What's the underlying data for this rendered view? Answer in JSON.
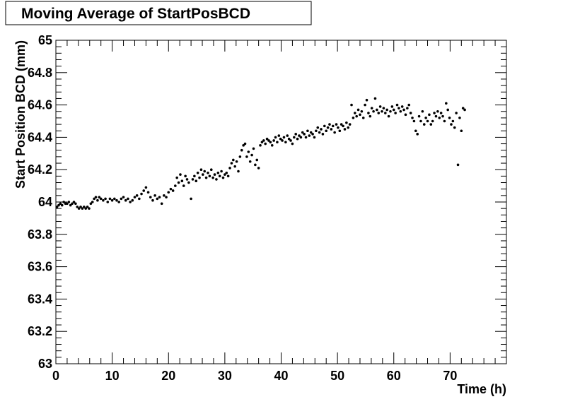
{
  "chart_data": {
    "type": "scatter",
    "title": "Moving Average of StartPosBCD",
    "xlabel": "Time (h)",
    "ylabel": "Start Position BCD (mm)",
    "xlim": [
      0,
      80
    ],
    "ylim": [
      63,
      65
    ],
    "x_ticks": [
      "0",
      "10",
      "20",
      "30",
      "40",
      "50",
      "60",
      "70"
    ],
    "y_ticks": [
      "63",
      "63.2",
      "63.4",
      "63.6",
      "63.8",
      "64",
      "64.2",
      "64.4",
      "64.6",
      "64.8",
      "65"
    ],
    "grid": false,
    "marker_color": "#000000",
    "series": [
      {
        "points": [
          [
            0.2,
            63.97
          ],
          [
            0.5,
            63.98
          ],
          [
            0.8,
            63.99
          ],
          [
            1.1,
            63.98
          ],
          [
            1.4,
            64.0
          ],
          [
            1.7,
            63.99
          ],
          [
            2.0,
            63.99
          ],
          [
            2.3,
            64.0
          ],
          [
            2.6,
            63.98
          ],
          [
            2.9,
            63.99
          ],
          [
            3.2,
            64.0
          ],
          [
            3.5,
            63.99
          ],
          [
            3.8,
            63.97
          ],
          [
            4.1,
            63.96
          ],
          [
            4.4,
            63.97
          ],
          [
            4.7,
            63.96
          ],
          [
            5.0,
            63.97
          ],
          [
            5.3,
            63.96
          ],
          [
            5.6,
            63.97
          ],
          [
            5.9,
            63.96
          ],
          [
            6.2,
            63.99
          ],
          [
            6.5,
            64.0
          ],
          [
            6.8,
            64.02
          ],
          [
            7.1,
            64.03
          ],
          [
            7.4,
            64.01
          ],
          [
            7.7,
            64.03
          ],
          [
            8.0,
            64.02
          ],
          [
            8.4,
            64.01
          ],
          [
            8.8,
            64.02
          ],
          [
            9.2,
            64.0
          ],
          [
            9.6,
            64.02
          ],
          [
            10.0,
            64.01
          ],
          [
            10.4,
            64.02
          ],
          [
            10.8,
            64.01
          ],
          [
            11.2,
            64.0
          ],
          [
            11.6,
            64.02
          ],
          [
            12.0,
            64.03
          ],
          [
            12.4,
            64.01
          ],
          [
            12.8,
            64.02
          ],
          [
            13.2,
            64.0
          ],
          [
            13.6,
            64.01
          ],
          [
            14.0,
            64.03
          ],
          [
            14.4,
            64.04
          ],
          [
            14.8,
            64.02
          ],
          [
            15.2,
            64.05
          ],
          [
            15.6,
            64.07
          ],
          [
            16.0,
            64.09
          ],
          [
            16.4,
            64.06
          ],
          [
            16.8,
            64.03
          ],
          [
            17.2,
            64.01
          ],
          [
            17.6,
            64.04
          ],
          [
            18.0,
            64.02
          ],
          [
            18.4,
            64.03
          ],
          [
            18.8,
            63.99
          ],
          [
            19.2,
            64.04
          ],
          [
            19.6,
            64.03
          ],
          [
            20.0,
            64.06
          ],
          [
            20.4,
            64.08
          ],
          [
            20.8,
            64.07
          ],
          [
            21.2,
            64.1
          ],
          [
            21.5,
            64.15
          ],
          [
            21.8,
            64.12
          ],
          [
            22.1,
            64.17
          ],
          [
            22.4,
            64.13
          ],
          [
            22.7,
            64.1
          ],
          [
            23.0,
            64.16
          ],
          [
            23.3,
            64.14
          ],
          [
            23.6,
            64.12
          ],
          [
            24.0,
            64.02
          ],
          [
            24.3,
            64.14
          ],
          [
            24.6,
            64.16
          ],
          [
            24.9,
            64.13
          ],
          [
            25.2,
            64.18
          ],
          [
            25.5,
            64.15
          ],
          [
            25.8,
            64.2
          ],
          [
            26.1,
            64.17
          ],
          [
            26.4,
            64.19
          ],
          [
            26.7,
            64.15
          ],
          [
            27.0,
            64.18
          ],
          [
            27.3,
            64.16
          ],
          [
            27.6,
            64.2
          ],
          [
            27.9,
            64.15
          ],
          [
            28.2,
            64.17
          ],
          [
            28.5,
            64.14
          ],
          [
            28.8,
            64.18
          ],
          [
            29.1,
            64.16
          ],
          [
            29.4,
            64.19
          ],
          [
            29.7,
            64.15
          ],
          [
            30.0,
            64.17
          ],
          [
            30.3,
            64.18
          ],
          [
            30.6,
            64.16
          ],
          [
            30.9,
            64.21
          ],
          [
            31.2,
            64.24
          ],
          [
            31.5,
            64.26
          ],
          [
            31.8,
            64.22
          ],
          [
            32.1,
            64.25
          ],
          [
            32.4,
            64.19
          ],
          [
            32.7,
            64.28
          ],
          [
            33.0,
            64.32
          ],
          [
            33.3,
            64.35
          ],
          [
            33.6,
            64.36
          ],
          [
            33.9,
            64.28
          ],
          [
            34.2,
            64.31
          ],
          [
            34.5,
            64.25
          ],
          [
            34.8,
            64.29
          ],
          [
            35.1,
            64.33
          ],
          [
            35.4,
            64.23
          ],
          [
            35.7,
            64.26
          ],
          [
            36.0,
            64.21
          ],
          [
            36.3,
            64.35
          ],
          [
            36.6,
            64.37
          ],
          [
            36.9,
            64.38
          ],
          [
            37.2,
            64.36
          ],
          [
            37.5,
            64.39
          ],
          [
            37.8,
            64.38
          ],
          [
            38.1,
            64.37
          ],
          [
            38.4,
            64.35
          ],
          [
            38.7,
            64.38
          ],
          [
            39.0,
            64.4
          ],
          [
            39.3,
            64.37
          ],
          [
            39.6,
            64.41
          ],
          [
            39.9,
            64.39
          ],
          [
            40.2,
            64.38
          ],
          [
            40.5,
            64.4
          ],
          [
            40.8,
            64.37
          ],
          [
            41.1,
            64.41
          ],
          [
            41.4,
            64.39
          ],
          [
            41.7,
            64.38
          ],
          [
            42.0,
            64.36
          ],
          [
            42.3,
            64.4
          ],
          [
            42.6,
            64.42
          ],
          [
            42.9,
            64.39
          ],
          [
            43.2,
            64.41
          ],
          [
            43.5,
            64.4
          ],
          [
            43.8,
            64.43
          ],
          [
            44.1,
            64.42
          ],
          [
            44.4,
            64.4
          ],
          [
            44.7,
            64.44
          ],
          [
            45.0,
            64.41
          ],
          [
            45.3,
            64.43
          ],
          [
            45.6,
            64.42
          ],
          [
            45.9,
            64.4
          ],
          [
            46.2,
            64.44
          ],
          [
            46.5,
            64.46
          ],
          [
            46.8,
            64.43
          ],
          [
            47.1,
            64.45
          ],
          [
            47.4,
            64.42
          ],
          [
            47.7,
            64.47
          ],
          [
            48.0,
            64.44
          ],
          [
            48.3,
            64.46
          ],
          [
            48.6,
            64.48
          ],
          [
            48.9,
            64.45
          ],
          [
            49.2,
            64.47
          ],
          [
            49.5,
            64.43
          ],
          [
            49.8,
            64.48
          ],
          [
            50.1,
            64.46
          ],
          [
            50.4,
            64.44
          ],
          [
            50.7,
            64.48
          ],
          [
            51.0,
            64.47
          ],
          [
            51.3,
            64.45
          ],
          [
            51.6,
            64.49
          ],
          [
            51.9,
            64.46
          ],
          [
            52.2,
            64.48
          ],
          [
            52.5,
            64.6
          ],
          [
            52.8,
            64.52
          ],
          [
            53.1,
            64.55
          ],
          [
            53.4,
            64.53
          ],
          [
            53.7,
            64.57
          ],
          [
            54.0,
            64.54
          ],
          [
            54.3,
            64.56
          ],
          [
            54.6,
            64.52
          ],
          [
            54.9,
            64.6
          ],
          [
            55.2,
            64.63
          ],
          [
            55.5,
            64.55
          ],
          [
            55.8,
            64.53
          ],
          [
            56.1,
            64.58
          ],
          [
            56.4,
            64.56
          ],
          [
            56.7,
            64.64
          ],
          [
            57.0,
            64.57
          ],
          [
            57.3,
            64.55
          ],
          [
            57.6,
            64.59
          ],
          [
            57.9,
            64.56
          ],
          [
            58.2,
            64.58
          ],
          [
            58.5,
            64.55
          ],
          [
            58.8,
            64.57
          ],
          [
            59.1,
            64.53
          ],
          [
            59.4,
            64.56
          ],
          [
            59.7,
            64.59
          ],
          [
            60.0,
            64.57
          ],
          [
            60.3,
            64.55
          ],
          [
            60.6,
            64.6
          ],
          [
            60.9,
            64.58
          ],
          [
            61.2,
            64.56
          ],
          [
            61.5,
            64.59
          ],
          [
            61.8,
            64.57
          ],
          [
            62.1,
            64.54
          ],
          [
            62.4,
            64.58
          ],
          [
            62.7,
            64.6
          ],
          [
            63.0,
            64.55
          ],
          [
            63.3,
            64.52
          ],
          [
            63.6,
            64.5
          ],
          [
            63.9,
            64.44
          ],
          [
            64.2,
            64.42
          ],
          [
            64.5,
            64.53
          ],
          [
            64.8,
            64.5
          ],
          [
            65.1,
            64.56
          ],
          [
            65.4,
            64.48
          ],
          [
            65.7,
            64.52
          ],
          [
            66.0,
            64.5
          ],
          [
            66.3,
            64.54
          ],
          [
            66.6,
            64.48
          ],
          [
            66.9,
            64.5
          ],
          [
            67.2,
            64.55
          ],
          [
            67.5,
            64.53
          ],
          [
            67.8,
            64.56
          ],
          [
            68.1,
            64.52
          ],
          [
            68.4,
            64.55
          ],
          [
            68.7,
            64.53
          ],
          [
            69.0,
            64.5
          ],
          [
            69.3,
            64.61
          ],
          [
            69.6,
            64.57
          ],
          [
            69.9,
            64.52
          ],
          [
            70.2,
            64.48
          ],
          [
            70.5,
            64.5
          ],
          [
            70.8,
            64.46
          ],
          [
            71.1,
            64.55
          ],
          [
            71.4,
            64.23
          ],
          [
            71.7,
            64.52
          ],
          [
            72.0,
            64.44
          ],
          [
            72.3,
            64.58
          ],
          [
            72.6,
            64.57
          ]
        ]
      }
    ]
  }
}
